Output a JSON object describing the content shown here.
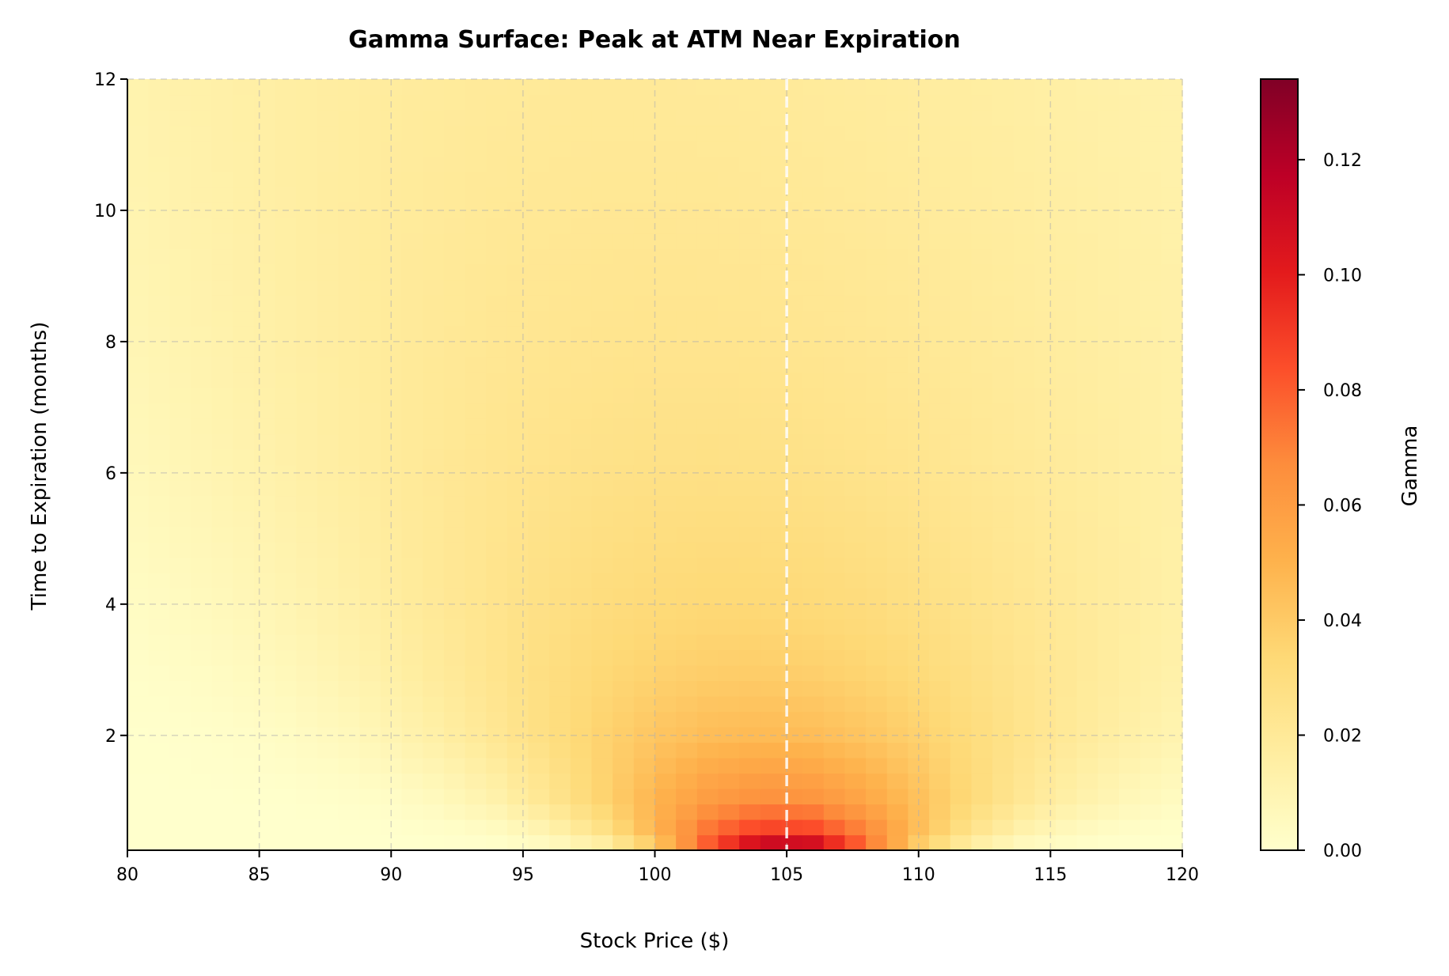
{
  "chart_data": {
    "type": "heatmap",
    "title": "Gamma Surface: Peak at ATM Near Expiration",
    "xlabel": "Stock Price ($)",
    "ylabel": "Time to Expiration (months)",
    "colorbar_label": "Gamma",
    "colormap": "YlOrRd",
    "color_range": [
      0,
      0.134
    ],
    "xlim": [
      80,
      120
    ],
    "ylim": [
      0.25,
      12
    ],
    "grid": true,
    "x_ticks": [
      "80",
      "85",
      "90",
      "95",
      "100",
      "105",
      "110",
      "115",
      "120"
    ],
    "y_ticks": [
      "2",
      "4",
      "6",
      "8",
      "10",
      "12"
    ],
    "colorbar_ticks": [
      "0.00",
      "0.02",
      "0.04",
      "0.06",
      "0.08",
      "0.10",
      "0.12"
    ],
    "reference_line": {
      "x": 105,
      "color": "#ffffff",
      "style": "dashed"
    },
    "x": [
      80,
      82,
      84,
      86,
      88,
      90,
      92,
      94,
      96,
      98,
      100,
      102,
      104,
      106,
      108,
      110,
      112,
      114,
      116,
      118,
      120
    ],
    "y": [
      0.25,
      0.5,
      1,
      2,
      3,
      4,
      6,
      8,
      10,
      12
    ],
    "z": [
      [
        0,
        0,
        0,
        0,
        0,
        0,
        0,
        0.0001,
        0.0012,
        0.0084,
        0.0339,
        0.0831,
        0.1265,
        0.1229,
        0.0784,
        0.0343,
        0.0098,
        0.002,
        0.0003,
        0,
        0
      ],
      [
        0,
        0,
        0,
        0,
        0,
        0.0001,
        0.0006,
        0.0028,
        0.0096,
        0.0247,
        0.0489,
        0.0755,
        0.0919,
        0.0892,
        0.0703,
        0.0453,
        0.0242,
        0.0108,
        0.0041,
        0.0013,
        0.0004
      ],
      [
        0,
        0,
        0.0001,
        0.0002,
        0.0008,
        0.0023,
        0.0058,
        0.0124,
        0.0226,
        0.0357,
        0.0495,
        0.0606,
        0.0659,
        0.064,
        0.0559,
        0.0444,
        0.032,
        0.0211,
        0.0128,
        0.0072,
        0.0037
      ],
      [
        0.0003,
        0.0007,
        0.0016,
        0.0032,
        0.0058,
        0.0098,
        0.0153,
        0.0219,
        0.0291,
        0.0361,
        0.0418,
        0.0456,
        0.0469,
        0.0456,
        0.042,
        0.0369,
        0.0309,
        0.0247,
        0.019,
        0.0141,
        0.01
      ],
      [
        0.0014,
        0.0026,
        0.0044,
        0.007,
        0.0104,
        0.0146,
        0.0193,
        0.0243,
        0.0291,
        0.0332,
        0.0362,
        0.038,
        0.0383,
        0.0372,
        0.035,
        0.0318,
        0.028,
        0.0239,
        0.0199,
        0.0161,
        0.0127
      ],
      [
        0.0031,
        0.0048,
        0.0071,
        0.01,
        0.0133,
        0.017,
        0.0208,
        0.0245,
        0.0278,
        0.0305,
        0.0323,
        0.0332,
        0.0332,
        0.0323,
        0.0306,
        0.0282,
        0.0255,
        0.0225,
        0.0195,
        0.0165,
        0.0138
      ],
      [
        0.0064,
        0.0084,
        0.0108,
        0.0134,
        0.016,
        0.0186,
        0.0211,
        0.0233,
        0.0251,
        0.0264,
        0.0272,
        0.0274,
        0.0271,
        0.0264,
        0.0252,
        0.0237,
        0.0219,
        0.02,
        0.018,
        0.016,
        0.0141
      ],
      [
        0.0087,
        0.0107,
        0.0127,
        0.0148,
        0.0168,
        0.0187,
        0.0204,
        0.0218,
        0.0228,
        0.0235,
        0.0239,
        0.0238,
        0.0235,
        0.0228,
        0.0219,
        0.0208,
        0.0195,
        0.0181,
        0.0166,
        0.0151,
        0.0136
      ],
      [
        0.0103,
        0.012,
        0.0137,
        0.0154,
        0.0169,
        0.0183,
        0.0194,
        0.0204,
        0.021,
        0.0214,
        0.0215,
        0.0214,
        0.021,
        0.0204,
        0.0196,
        0.0187,
        0.0177,
        0.0166,
        0.0154,
        0.0142,
        0.013
      ],
      [
        0.0113,
        0.0128,
        0.0142,
        0.0155,
        0.0167,
        0.0177,
        0.0185,
        0.0192,
        0.0196,
        0.0198,
        0.0197,
        0.0195,
        0.0192,
        0.0186,
        0.0179,
        0.0172,
        0.0163,
        0.0154,
        0.0144,
        0.0134,
        0.0124
      ]
    ]
  }
}
